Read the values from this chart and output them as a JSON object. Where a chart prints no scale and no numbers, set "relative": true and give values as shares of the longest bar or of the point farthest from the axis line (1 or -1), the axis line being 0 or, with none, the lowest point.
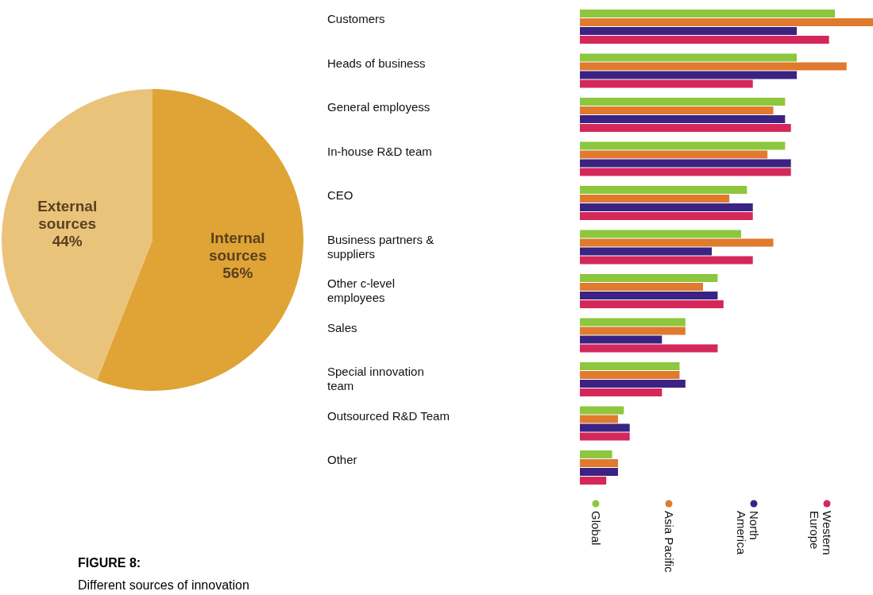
{
  "chart_data": [
    {
      "type": "pie",
      "title": "FIGURE 8:",
      "subtitle": "Different sources of innovation",
      "categories": [
        "Internal sources",
        "External sources"
      ],
      "values": [
        56,
        44
      ],
      "colors": [
        "#dfa435",
        "#eac37a"
      ],
      "value_labels": [
        "56%",
        "44%"
      ]
    },
    {
      "type": "bar",
      "orientation": "horizontal",
      "relative": true,
      "legend": "bottom",
      "categories": [
        "Customers",
        "Heads of business",
        "General employess",
        "In-house R&D team",
        "CEO",
        "Business partners & suppliers",
        "Other c-level employees",
        "Sales",
        "Special innovation team",
        "Outsourced R&D Team",
        "Other"
      ],
      "series": [
        {
          "name": "Global",
          "color": "#8dc63f",
          "values": [
            0.87,
            0.74,
            0.7,
            0.7,
            0.57,
            0.55,
            0.47,
            0.36,
            0.34,
            0.15,
            0.11
          ]
        },
        {
          "name": "Asia Pacific",
          "color": "#e07a2e",
          "values": [
            1.0,
            0.91,
            0.66,
            0.64,
            0.51,
            0.66,
            0.42,
            0.36,
            0.34,
            0.13,
            0.13
          ]
        },
        {
          "name": "North America",
          "color": "#3b2383",
          "values": [
            0.74,
            0.74,
            0.7,
            0.72,
            0.59,
            0.45,
            0.47,
            0.28,
            0.36,
            0.17,
            0.13
          ]
        },
        {
          "name": "Western Europe",
          "color": "#d4285a",
          "values": [
            0.85,
            0.59,
            0.72,
            0.72,
            0.59,
            0.59,
            0.49,
            0.47,
            0.28,
            0.17,
            0.09
          ]
        }
      ]
    }
  ]
}
